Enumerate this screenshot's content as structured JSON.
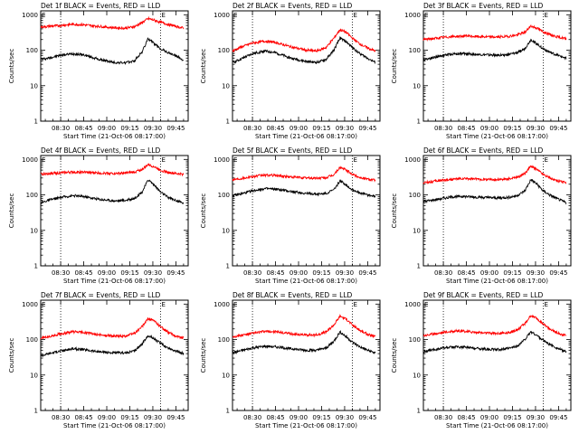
{
  "figure": {
    "colors": {
      "events": "#000000",
      "lld": "#ff0000",
      "axes": "#000000"
    }
  },
  "chart_data": [
    {
      "type": "line",
      "title": "Det 1f BLACK = Events, RED = LLD",
      "xlabel": "Start Time (21-Oct-06 08:17:00)",
      "ylabel": "Counts/sec",
      "yscale": "log",
      "ylim": [
        1,
        1000
      ],
      "y_ticks": [
        "1",
        "10",
        "100",
        "1000"
      ],
      "x_ticks": [
        "08:30",
        "08:45",
        "09:00",
        "09:15",
        "09:30",
        "09:45"
      ],
      "vlines": [
        "08:30",
        "09:35"
      ],
      "marker_label": "E",
      "series": [
        {
          "color": "#000000",
          "x": [
            "08:17",
            "08:22",
            "08:30",
            "08:38",
            "08:45",
            "08:55",
            "09:05",
            "09:12",
            "09:18",
            "09:23",
            "09:27",
            "09:31",
            "09:35",
            "09:40",
            "09:45",
            "09:50"
          ],
          "y": [
            55,
            60,
            72,
            80,
            74,
            55,
            45,
            44,
            50,
            90,
            215,
            150,
            110,
            85,
            70,
            52
          ]
        },
        {
          "color": "#ff0000",
          "x": [
            "08:17",
            "08:22",
            "08:30",
            "08:38",
            "08:45",
            "08:55",
            "09:05",
            "09:12",
            "09:18",
            "09:23",
            "09:27",
            "09:31",
            "09:35",
            "09:40",
            "09:45",
            "09:50"
          ],
          "y": [
            450,
            470,
            500,
            540,
            520,
            470,
            430,
            420,
            460,
            600,
            780,
            700,
            620,
            530,
            470,
            420
          ]
        }
      ]
    },
    {
      "type": "line",
      "title": "Det 2f BLACK = Events, RED = LLD",
      "xlabel": "Start Time (21-Oct-06 08:17:00)",
      "ylabel": "Counts/sec",
      "yscale": "log",
      "ylim": [
        1,
        1000
      ],
      "y_ticks": [
        "1",
        "10",
        "100",
        "1000"
      ],
      "x_ticks": [
        "08:30",
        "08:45",
        "09:00",
        "09:15",
        "09:30",
        "09:45"
      ],
      "vlines": [
        "08:30",
        "09:35"
      ],
      "marker_label": "E",
      "series": [
        {
          "color": "#000000",
          "x": [
            "08:17",
            "08:22",
            "08:30",
            "08:38",
            "08:45",
            "08:55",
            "09:05",
            "09:12",
            "09:18",
            "09:23",
            "09:27",
            "09:31",
            "09:35",
            "09:40",
            "09:45",
            "09:50"
          ],
          "y": [
            45,
            55,
            80,
            95,
            85,
            60,
            48,
            45,
            55,
            100,
            220,
            175,
            120,
            80,
            60,
            45
          ]
        },
        {
          "color": "#ff0000",
          "x": [
            "08:17",
            "08:22",
            "08:30",
            "08:38",
            "08:45",
            "08:55",
            "09:05",
            "09:12",
            "09:18",
            "09:23",
            "09:27",
            "09:31",
            "09:35",
            "09:40",
            "09:45",
            "09:50"
          ],
          "y": [
            95,
            120,
            160,
            180,
            165,
            125,
            100,
            95,
            120,
            220,
            380,
            320,
            220,
            150,
            115,
            95
          ]
        }
      ]
    },
    {
      "type": "line",
      "title": "Det 3f BLACK = Events, RED = LLD",
      "xlabel": "Start Time (21-Oct-06 08:17:00)",
      "ylabel": "Counts/sec",
      "yscale": "log",
      "ylim": [
        1,
        1000
      ],
      "y_ticks": [
        "1",
        "10",
        "100",
        "1000"
      ],
      "x_ticks": [
        "08:30",
        "08:45",
        "09:00",
        "09:15",
        "09:30",
        "09:45"
      ],
      "vlines": [
        "08:30",
        "09:35"
      ],
      "marker_label": "E",
      "series": [
        {
          "color": "#000000",
          "x": [
            "08:17",
            "08:22",
            "08:30",
            "08:38",
            "08:45",
            "08:55",
            "09:05",
            "09:12",
            "09:18",
            "09:23",
            "09:27",
            "09:31",
            "09:35",
            "09:40",
            "09:45",
            "09:50"
          ],
          "y": [
            55,
            60,
            72,
            80,
            80,
            75,
            72,
            75,
            85,
            110,
            200,
            150,
            110,
            85,
            70,
            60
          ]
        },
        {
          "color": "#ff0000",
          "x": [
            "08:17",
            "08:22",
            "08:30",
            "08:38",
            "08:45",
            "08:55",
            "09:05",
            "09:12",
            "09:18",
            "09:23",
            "09:27",
            "09:31",
            "09:35",
            "09:40",
            "09:45",
            "09:50"
          ],
          "y": [
            200,
            210,
            230,
            245,
            250,
            240,
            235,
            245,
            270,
            320,
            480,
            420,
            330,
            270,
            235,
            210
          ]
        }
      ]
    },
    {
      "type": "line",
      "title": "Det 4f BLACK = Events, RED = LLD",
      "xlabel": "Start Time (21-Oct-06 08:17:00)",
      "ylabel": "Counts/sec",
      "yscale": "log",
      "ylim": [
        1,
        1000
      ],
      "y_ticks": [
        "1",
        "10",
        "100",
        "1000"
      ],
      "x_ticks": [
        "08:30",
        "08:45",
        "09:00",
        "09:15",
        "09:30",
        "09:45"
      ],
      "vlines": [
        "08:30",
        "09:35"
      ],
      "marker_label": "E",
      "series": [
        {
          "color": "#000000",
          "x": [
            "08:17",
            "08:22",
            "08:30",
            "08:38",
            "08:45",
            "08:55",
            "09:05",
            "09:12",
            "09:18",
            "09:23",
            "09:27",
            "09:31",
            "09:35",
            "09:40",
            "09:45",
            "09:50"
          ],
          "y": [
            60,
            70,
            85,
            95,
            90,
            75,
            68,
            70,
            80,
            120,
            270,
            190,
            120,
            85,
            70,
            58
          ]
        },
        {
          "color": "#ff0000",
          "x": [
            "08:17",
            "08:22",
            "08:30",
            "08:38",
            "08:45",
            "08:55",
            "09:05",
            "09:12",
            "09:18",
            "09:23",
            "09:27",
            "09:31",
            "09:35",
            "09:40",
            "09:45",
            "09:50"
          ],
          "y": [
            380,
            400,
            420,
            440,
            435,
            415,
            400,
            410,
            440,
            520,
            720,
            620,
            500,
            430,
            400,
            380
          ]
        }
      ]
    },
    {
      "type": "line",
      "title": "Det 5f BLACK = Events, RED = LLD",
      "xlabel": "Start Time (21-Oct-06 08:17:00)",
      "ylabel": "Counts/sec",
      "yscale": "log",
      "ylim": [
        1,
        1000
      ],
      "y_ticks": [
        "1",
        "10",
        "100",
        "1000"
      ],
      "x_ticks": [
        "08:30",
        "08:45",
        "09:00",
        "09:15",
        "09:30",
        "09:45"
      ],
      "vlines": [
        "08:30",
        "09:35"
      ],
      "marker_label": "E",
      "series": [
        {
          "color": "#000000",
          "x": [
            "08:17",
            "08:22",
            "08:30",
            "08:38",
            "08:45",
            "08:55",
            "09:05",
            "09:12",
            "09:18",
            "09:23",
            "09:27",
            "09:31",
            "09:35",
            "09:40",
            "09:45",
            "09:50"
          ],
          "y": [
            95,
            105,
            130,
            150,
            145,
            125,
            110,
            105,
            110,
            140,
            250,
            190,
            140,
            115,
            100,
            90
          ]
        },
        {
          "color": "#ff0000",
          "x": [
            "08:17",
            "08:22",
            "08:30",
            "08:38",
            "08:45",
            "08:55",
            "09:05",
            "09:12",
            "09:18",
            "09:23",
            "09:27",
            "09:31",
            "09:35",
            "09:40",
            "09:45",
            "09:50"
          ],
          "y": [
            270,
            290,
            330,
            360,
            355,
            320,
            300,
            295,
            305,
            370,
            600,
            500,
            380,
            310,
            280,
            260
          ]
        }
      ]
    },
    {
      "type": "line",
      "title": "Det 6f BLACK = Events, RED = LLD",
      "xlabel": "Start Time (21-Oct-06 08:17:00)",
      "ylabel": "Counts/sec",
      "yscale": "log",
      "ylim": [
        1,
        1000
      ],
      "y_ticks": [
        "1",
        "10",
        "100",
        "1000"
      ],
      "x_ticks": [
        "08:30",
        "08:45",
        "09:00",
        "09:15",
        "09:30",
        "09:45"
      ],
      "vlines": [
        "08:30",
        "09:35"
      ],
      "marker_label": "E",
      "series": [
        {
          "color": "#000000",
          "x": [
            "08:17",
            "08:22",
            "08:30",
            "08:38",
            "08:45",
            "08:55",
            "09:05",
            "09:12",
            "09:18",
            "09:23",
            "09:27",
            "09:31",
            "09:35",
            "09:40",
            "09:45",
            "09:50"
          ],
          "y": [
            65,
            70,
            80,
            90,
            90,
            85,
            82,
            85,
            95,
            130,
            270,
            200,
            130,
            95,
            75,
            60
          ]
        },
        {
          "color": "#ff0000",
          "x": [
            "08:17",
            "08:22",
            "08:30",
            "08:38",
            "08:45",
            "08:55",
            "09:05",
            "09:12",
            "09:18",
            "09:23",
            "09:27",
            "09:31",
            "09:35",
            "09:40",
            "09:45",
            "09:50"
          ],
          "y": [
            220,
            235,
            260,
            280,
            285,
            275,
            270,
            280,
            310,
            400,
            640,
            520,
            380,
            290,
            245,
            220
          ]
        }
      ]
    },
    {
      "type": "line",
      "title": "Det 7f BLACK = Events, RED = LLD",
      "xlabel": "Start Time (21-Oct-06 08:17:00)",
      "ylabel": "Counts/sec",
      "yscale": "log",
      "ylim": [
        1,
        1000
      ],
      "y_ticks": [
        "1",
        "10",
        "100",
        "1000"
      ],
      "x_ticks": [
        "08:30",
        "08:45",
        "09:00",
        "09:15",
        "09:30",
        "09:45"
      ],
      "vlines": [
        "08:30",
        "09:35"
      ],
      "marker_label": "E",
      "series": [
        {
          "color": "#000000",
          "x": [
            "08:17",
            "08:22",
            "08:30",
            "08:38",
            "08:45",
            "08:55",
            "09:05",
            "09:12",
            "09:18",
            "09:23",
            "09:27",
            "09:31",
            "09:35",
            "09:40",
            "09:45",
            "09:50"
          ],
          "y": [
            35,
            40,
            48,
            55,
            52,
            45,
            42,
            42,
            48,
            75,
            130,
            105,
            78,
            58,
            48,
            40
          ]
        },
        {
          "color": "#ff0000",
          "x": [
            "08:17",
            "08:22",
            "08:30",
            "08:38",
            "08:45",
            "08:55",
            "09:05",
            "09:12",
            "09:18",
            "09:23",
            "09:27",
            "09:31",
            "09:35",
            "09:40",
            "09:45",
            "09:50"
          ],
          "y": [
            110,
            120,
            145,
            165,
            160,
            135,
            125,
            125,
            150,
            230,
            400,
            330,
            230,
            160,
            125,
            110
          ]
        }
      ]
    },
    {
      "type": "line",
      "title": "Det 8f BLACK = Events, RED = LLD",
      "xlabel": "Start Time (21-Oct-06 08:17:00)",
      "ylabel": "Counts/sec",
      "yscale": "log",
      "ylim": [
        1,
        1000
      ],
      "y_ticks": [
        "1",
        "10",
        "100",
        "1000"
      ],
      "x_ticks": [
        "08:30",
        "08:45",
        "09:00",
        "09:15",
        "09:30",
        "09:45"
      ],
      "vlines": [
        "08:30",
        "09:35"
      ],
      "marker_label": "E",
      "series": [
        {
          "color": "#000000",
          "x": [
            "08:17",
            "08:22",
            "08:30",
            "08:38",
            "08:45",
            "08:55",
            "09:05",
            "09:12",
            "09:18",
            "09:23",
            "09:27",
            "09:31",
            "09:35",
            "09:40",
            "09:45",
            "09:50"
          ],
          "y": [
            42,
            48,
            58,
            65,
            62,
            55,
            50,
            50,
            58,
            90,
            165,
            120,
            85,
            62,
            50,
            42
          ]
        },
        {
          "color": "#ff0000",
          "x": [
            "08:17",
            "08:22",
            "08:30",
            "08:38",
            "08:45",
            "08:55",
            "09:05",
            "09:12",
            "09:18",
            "09:23",
            "09:27",
            "09:31",
            "09:35",
            "09:40",
            "09:45",
            "09:50"
          ],
          "y": [
            120,
            130,
            150,
            170,
            165,
            145,
            135,
            135,
            165,
            260,
            460,
            380,
            260,
            180,
            140,
            120
          ]
        }
      ]
    },
    {
      "type": "line",
      "title": "Det 9f BLACK = Events, RED = LLD",
      "xlabel": "Start Time (21-Oct-06 08:17:00)",
      "ylabel": "Counts/sec",
      "yscale": "log",
      "ylim": [
        1,
        1000
      ],
      "y_ticks": [
        "1",
        "10",
        "100",
        "1000"
      ],
      "x_ticks": [
        "08:30",
        "08:45",
        "09:00",
        "09:15",
        "09:30",
        "09:45"
      ],
      "vlines": [
        "08:30",
        "09:35"
      ],
      "marker_label": "E",
      "series": [
        {
          "color": "#000000",
          "x": [
            "08:17",
            "08:22",
            "08:30",
            "08:38",
            "08:45",
            "08:55",
            "09:05",
            "09:12",
            "09:18",
            "09:23",
            "09:27",
            "09:31",
            "09:35",
            "09:40",
            "09:45",
            "09:50"
          ],
          "y": [
            45,
            50,
            58,
            62,
            60,
            55,
            52,
            55,
            65,
            100,
            165,
            130,
            95,
            70,
            55,
            45
          ]
        },
        {
          "color": "#ff0000",
          "x": [
            "08:17",
            "08:22",
            "08:30",
            "08:38",
            "08:45",
            "08:55",
            "09:05",
            "09:12",
            "09:18",
            "09:23",
            "09:27",
            "09:31",
            "09:35",
            "09:40",
            "09:45",
            "09:50"
          ],
          "y": [
            130,
            140,
            160,
            175,
            170,
            155,
            150,
            155,
            185,
            280,
            470,
            390,
            270,
            190,
            150,
            130
          ]
        }
      ]
    }
  ]
}
